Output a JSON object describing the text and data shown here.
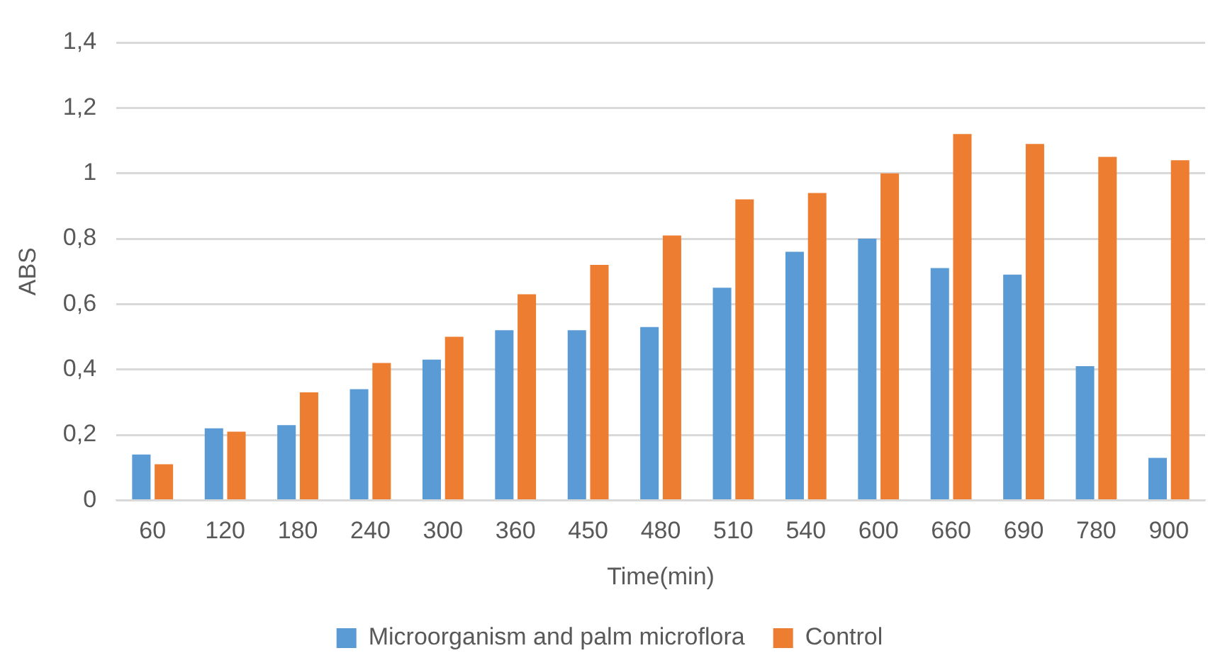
{
  "chart_data": {
    "type": "bar",
    "xlabel": "Time(min)",
    "ylabel": "ABS",
    "categories": [
      "60",
      "120",
      "180",
      "240",
      "300",
      "360",
      "450",
      "480",
      "510",
      "540",
      "600",
      "660",
      "690",
      "780",
      "900"
    ],
    "series": [
      {
        "name": "Microorganism and palm microflora",
        "color": "#5b9bd5",
        "values": [
          0.14,
          0.22,
          0.23,
          0.34,
          0.43,
          0.52,
          0.52,
          0.53,
          0.65,
          0.76,
          0.8,
          0.71,
          0.69,
          0.41,
          0.13
        ]
      },
      {
        "name": "Control",
        "color": "#ed7d31",
        "values": [
          0.11,
          0.21,
          0.33,
          0.42,
          0.5,
          0.63,
          0.72,
          0.81,
          0.92,
          0.94,
          1.0,
          1.12,
          1.09,
          1.05,
          1.04
        ]
      }
    ],
    "ylim": [
      0,
      1.4
    ],
    "yticks": [
      0,
      {
        "value": 0.2,
        "label": "0,2"
      },
      {
        "value": 0.4,
        "label": "0,4"
      },
      {
        "value": 0.6,
        "label": "0,6"
      },
      {
        "value": 0.8,
        "label": "0,8"
      },
      1,
      {
        "value": 1.2,
        "label": "1,2"
      },
      {
        "value": 1.4,
        "label": "1,4"
      }
    ],
    "grid": "y",
    "legend": "bottom"
  }
}
